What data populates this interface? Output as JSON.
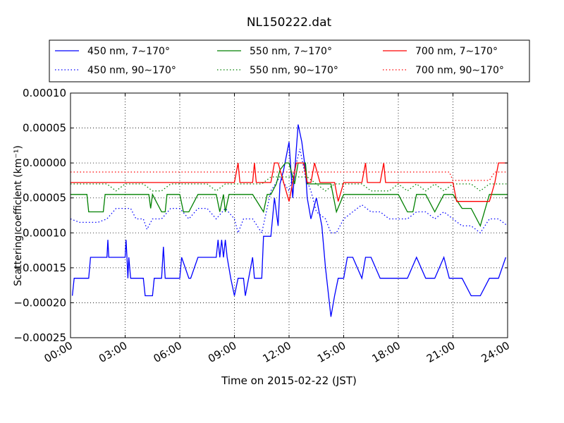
{
  "chart_data": {
    "type": "line",
    "title": "NL150222.dat",
    "xlabel": "Time on 2015-02-22 (JST)",
    "ylabel": "Scattering coefficient (km⁻¹)",
    "xlim": [
      0,
      24
    ],
    "ylim": [
      -0.00025,
      0.0001
    ],
    "x_tick_labels": [
      "00:00",
      "03:00",
      "06:00",
      "09:00",
      "12:00",
      "15:00",
      "18:00",
      "21:00",
      "24:00"
    ],
    "y_tick_labels": [
      "−0.00025",
      "−0.00020",
      "−0.00015",
      "−0.00010",
      "−0.00005",
      "0.00000",
      "0.00005",
      "0.00010"
    ],
    "grid": true,
    "legend_position": "top",
    "series": [
      {
        "name": "450 nm, 7∼170°",
        "color": "#0000ff",
        "style": "solid",
        "x": [
          0.1,
          0.2,
          0.25,
          0.3,
          0.5,
          1.0,
          1.1,
          1.5,
          2.0,
          2.05,
          2.1,
          2.5,
          3.0,
          3.05,
          3.1,
          3.15,
          3.2,
          3.3,
          4.0,
          4.1,
          4.5,
          4.6,
          5.0,
          5.1,
          5.2,
          5.3,
          5.4,
          5.5,
          5.6,
          6.0,
          6.1,
          6.5,
          6.6,
          7.0,
          7.1,
          7.5,
          7.6,
          8.0,
          8.1,
          8.2,
          8.3,
          8.4,
          8.5,
          8.6,
          8.8,
          9.0,
          9.2,
          9.5,
          9.6,
          10.0,
          10.1,
          10.5,
          10.6,
          11.0,
          11.2,
          11.4,
          11.5,
          11.7,
          12.0,
          12.2,
          12.5,
          12.7,
          12.9,
          13.0,
          13.2,
          13.5,
          13.8,
          14.0,
          14.3,
          14.5,
          14.7,
          15.0,
          15.2,
          15.5,
          16.0,
          16.2,
          16.5,
          17.0,
          17.5,
          18.0,
          18.5,
          19.0,
          19.5,
          20.0,
          20.5,
          20.8,
          21.0,
          21.5,
          22.0,
          22.5,
          23.0,
          23.5,
          23.9
        ],
        "y": [
          -0.00019,
          -0.000165,
          -0.000165,
          -0.000165,
          -0.000165,
          -0.000165,
          -0.000135,
          -0.000135,
          -0.000135,
          -0.00011,
          -0.000135,
          -0.000135,
          -0.000135,
          -0.00011,
          -0.000135,
          -0.000165,
          -0.000135,
          -0.000165,
          -0.000165,
          -0.00019,
          -0.00019,
          -0.000165,
          -0.000165,
          -0.00012,
          -0.000165,
          -0.000165,
          -0.000165,
          -0.000165,
          -0.000165,
          -0.000165,
          -0.000135,
          -0.000165,
          -0.000165,
          -0.000135,
          -0.000135,
          -0.000135,
          -0.000135,
          -0.000135,
          -0.00011,
          -0.000135,
          -0.00011,
          -0.000135,
          -0.00011,
          -0.000135,
          -0.000165,
          -0.00019,
          -0.000165,
          -0.000165,
          -0.00019,
          -0.000135,
          -0.000165,
          -0.000165,
          -0.000105,
          -0.000105,
          -5e-05,
          -9e-05,
          -3e-05,
          -1e-05,
          3e-05,
          -5e-05,
          5.5e-05,
          3e-05,
          -1e-05,
          -5e-05,
          -8e-05,
          -5e-05,
          -9e-05,
          -0.00015,
          -0.00022,
          -0.00019,
          -0.000165,
          -0.000165,
          -0.000135,
          -0.000135,
          -0.000165,
          -0.000135,
          -0.000135,
          -0.000165,
          -0.000165,
          -0.000165,
          -0.000165,
          -0.000135,
          -0.000165,
          -0.000165,
          -0.000135,
          -0.000165,
          -0.000165,
          -0.000165,
          -0.00019,
          -0.00019,
          -0.000165,
          -0.000165,
          -0.000135
        ]
      },
      {
        "name": "450 nm, 90∼170°",
        "color": "#0000ff",
        "style": "dotted",
        "x": [
          0.0,
          0.5,
          1.0,
          1.5,
          2.0,
          2.5,
          3.0,
          3.3,
          3.6,
          4.0,
          4.2,
          4.5,
          5.0,
          5.5,
          6.0,
          6.5,
          7.0,
          7.5,
          8.0,
          8.5,
          9.0,
          9.2,
          9.5,
          10.0,
          10.5,
          11.0,
          11.5,
          12.0,
          12.3,
          12.6,
          12.9,
          13.2,
          13.5,
          14.0,
          14.3,
          14.6,
          15.0,
          15.5,
          16.0,
          16.5,
          17.0,
          17.5,
          18.0,
          18.5,
          19.0,
          19.5,
          20.0,
          20.5,
          21.0,
          21.5,
          22.0,
          22.5,
          23.0,
          23.5,
          24.0
        ],
        "y": [
          -8e-05,
          -8.5e-05,
          -8.5e-05,
          -8.5e-05,
          -8e-05,
          -6.5e-05,
          -6.5e-05,
          -6.5e-05,
          -8e-05,
          -8e-05,
          -9.5e-05,
          -8e-05,
          -8e-05,
          -6.5e-05,
          -6.5e-05,
          -8e-05,
          -6.5e-05,
          -6.5e-05,
          -8e-05,
          -6.5e-05,
          -8e-05,
          -0.0001,
          -8e-05,
          -8e-05,
          -0.0001,
          -4e-05,
          -2e-05,
          -4e-05,
          -1e-05,
          2e-05,
          -2e-05,
          -4e-05,
          -7e-05,
          -8e-05,
          -0.0001,
          -0.0001,
          -8e-05,
          -7e-05,
          -6e-05,
          -7e-05,
          -7e-05,
          -8e-05,
          -8e-05,
          -8e-05,
          -7e-05,
          -7e-05,
          -8e-05,
          -7e-05,
          -8e-05,
          -9e-05,
          -9e-05,
          -0.0001,
          -8e-05,
          -8e-05,
          -9e-05
        ]
      },
      {
        "name": "550 nm, 7∼170°",
        "color": "#008000",
        "style": "solid",
        "x": [
          0.0,
          0.9,
          1.0,
          1.8,
          1.9,
          2.5,
          3.0,
          3.5,
          4.0,
          4.3,
          4.4,
          4.5,
          5.0,
          5.2,
          5.3,
          5.5,
          6.0,
          6.2,
          6.5,
          7.0,
          7.5,
          8.0,
          8.2,
          8.4,
          8.5,
          8.7,
          9.0,
          9.5,
          10.0,
          10.6,
          10.8,
          11.0,
          11.3,
          11.5,
          11.8,
          12.0,
          12.3,
          12.5,
          12.9,
          13.0,
          13.3,
          13.6,
          14.0,
          14.3,
          14.6,
          15.0,
          15.5,
          16.0,
          16.3,
          16.5,
          17.0,
          17.5,
          18.0,
          18.5,
          18.8,
          19.0,
          19.5,
          20.0,
          20.5,
          21.0,
          21.5,
          22.0,
          22.5,
          23.0,
          23.5,
          24.0
        ],
        "y": [
          -4.5e-05,
          -4.5e-05,
          -7e-05,
          -7e-05,
          -4.5e-05,
          -4.5e-05,
          -4.5e-05,
          -4.5e-05,
          -4.5e-05,
          -4.5e-05,
          -6.5e-05,
          -4.5e-05,
          -7e-05,
          -7e-05,
          -4.5e-05,
          -4.5e-05,
          -4.5e-05,
          -7e-05,
          -7e-05,
          -4.5e-05,
          -4.5e-05,
          -4.5e-05,
          -7e-05,
          -4.5e-05,
          -7e-05,
          -4.5e-05,
          -4.5e-05,
          -4.5e-05,
          -4.5e-05,
          -7e-05,
          -4.5e-05,
          -4.5e-05,
          -3e-05,
          -1e-05,
          0.0,
          0.0,
          -3e-05,
          0.0,
          0.0,
          -3e-05,
          -3e-05,
          -3e-05,
          -3e-05,
          -3e-05,
          -7e-05,
          -4.5e-05,
          -4.5e-05,
          -4.5e-05,
          -4.5e-05,
          -4.5e-05,
          -4.5e-05,
          -4.5e-05,
          -4.5e-05,
          -7e-05,
          -7e-05,
          -4.5e-05,
          -4.5e-05,
          -7e-05,
          -4.5e-05,
          -4.5e-05,
          -6.5e-05,
          -6.5e-05,
          -9e-05,
          -4.5e-05,
          -4.5e-05,
          -4.5e-05
        ]
      },
      {
        "name": "550 nm, 90∼170°",
        "color": "#008000",
        "style": "dotted",
        "x": [
          0.0,
          1.0,
          2.0,
          2.5,
          3.0,
          3.5,
          4.0,
          4.5,
          5.0,
          5.5,
          6.0,
          6.5,
          7.0,
          7.5,
          8.0,
          8.5,
          9.0,
          9.5,
          10.0,
          10.5,
          11.0,
          11.5,
          12.0,
          12.5,
          13.0,
          13.5,
          14.0,
          14.5,
          15.0,
          15.5,
          16.0,
          16.5,
          17.0,
          17.5,
          18.0,
          18.5,
          19.0,
          19.5,
          20.0,
          20.5,
          21.0,
          21.5,
          22.0,
          22.5,
          23.0,
          23.5,
          24.0
        ],
        "y": [
          -3e-05,
          -3e-05,
          -3e-05,
          -4e-05,
          -3e-05,
          -3e-05,
          -3e-05,
          -4e-05,
          -4e-05,
          -3e-05,
          -3e-05,
          -3e-05,
          -3e-05,
          -3e-05,
          -4e-05,
          -3e-05,
          -3e-05,
          -3e-05,
          -3e-05,
          -3e-05,
          -2e-05,
          -2e-05,
          -2e-05,
          -2e-05,
          -2e-05,
          -3e-05,
          -4e-05,
          -3e-05,
          -3e-05,
          -3e-05,
          -3e-05,
          -4e-05,
          -4e-05,
          -4e-05,
          -3e-05,
          -4e-05,
          -3e-05,
          -4e-05,
          -3e-05,
          -4e-05,
          -3e-05,
          -3e-05,
          -3e-05,
          -4e-05,
          -3e-05,
          -3e-05,
          -3e-05
        ]
      },
      {
        "name": "700 nm, 7∼170°",
        "color": "#ff0000",
        "style": "solid",
        "x": [
          0.0,
          5.0,
          9.0,
          9.2,
          9.3,
          9.4,
          10.0,
          10.1,
          10.2,
          11.0,
          11.2,
          11.4,
          11.7,
          12.0,
          12.2,
          12.4,
          12.8,
          13.0,
          13.2,
          13.4,
          13.7,
          14.0,
          14.2,
          14.5,
          14.7,
          15.0,
          15.2,
          16.0,
          16.2,
          16.3,
          17.0,
          17.2,
          17.3,
          18.0,
          20.0,
          21.0,
          21.2,
          22.0,
          22.5,
          22.6,
          23.0,
          23.3,
          23.5,
          24.0
        ],
        "y": [
          -2.8e-05,
          -2.8e-05,
          -2.8e-05,
          0.0,
          -2.8e-05,
          -2.8e-05,
          -2.8e-05,
          0.0,
          -2.8e-05,
          -2.8e-05,
          0.0,
          0.0,
          -2.8e-05,
          -5.5e-05,
          -2.8e-05,
          0.0,
          0.0,
          -2.8e-05,
          -2.8e-05,
          0.0,
          -2.8e-05,
          -2.8e-05,
          -2.8e-05,
          -2.8e-05,
          -5.5e-05,
          -2.8e-05,
          -2.8e-05,
          -2.8e-05,
          0.0,
          -2.8e-05,
          -2.8e-05,
          0.0,
          -2.8e-05,
          -2.8e-05,
          -2.8e-05,
          -2.8e-05,
          -5.5e-05,
          -5.5e-05,
          -5.5e-05,
          -5.5e-05,
          -5.5e-05,
          -2.8e-05,
          0.0,
          0.0
        ]
      },
      {
        "name": "700 nm, 90∼170°",
        "color": "#ff0000",
        "style": "dotted",
        "x": [
          0.0,
          3.0,
          6.0,
          9.0,
          9.5,
          10.0,
          11.0,
          11.5,
          12.0,
          12.5,
          13.0,
          13.5,
          14.0,
          14.5,
          15.0,
          15.5,
          16.0,
          17.0,
          18.0,
          19.0,
          20.0,
          20.8,
          21.0,
          22.0,
          23.0,
          23.3,
          23.6,
          24.0
        ],
        "y": [
          -1.3e-05,
          -1.3e-05,
          -1.3e-05,
          -1.3e-05,
          -1.3e-05,
          -1.3e-05,
          -1.3e-05,
          -1.3e-05,
          -1.3e-05,
          -1.3e-05,
          -1.3e-05,
          -1.3e-05,
          -1.3e-05,
          -1.3e-05,
          -1.3e-05,
          -1.3e-05,
          -1.3e-05,
          -1.3e-05,
          -1.3e-05,
          -1.3e-05,
          -1.3e-05,
          -1.3e-05,
          -2.5e-05,
          -2.5e-05,
          -2.5e-05,
          -1.3e-05,
          -1.3e-05,
          -1.3e-05
        ]
      }
    ]
  }
}
